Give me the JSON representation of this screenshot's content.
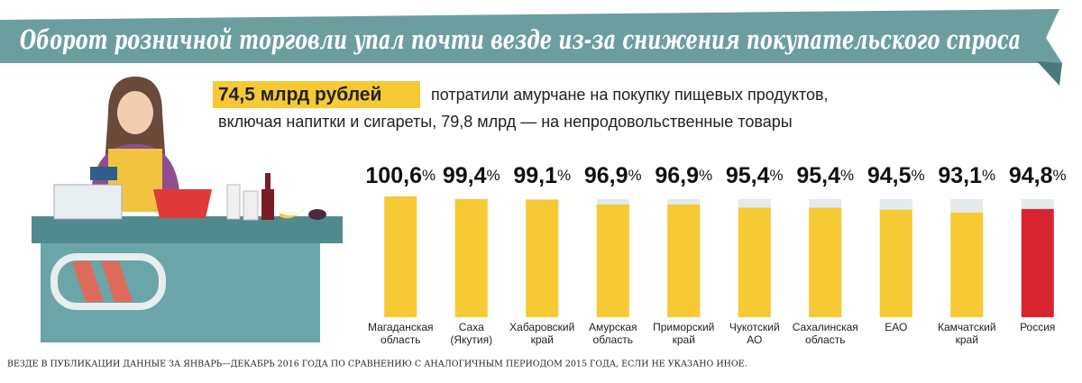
{
  "chart_data": {
    "type": "bar",
    "title": "Оборот розничной торговли упал почти везде из-за снижения покупательского спроса",
    "annotations": [
      "74,5 млрд рублей",
      "потратили амурчане на покупку пищевых продуктов,",
      "включая напитки и сигареты, 79,8 млрд — на непродовольственные товары"
    ],
    "note": "ВЕЗДЕ В ПУБЛИКАЦИИ ДАННЫЕ ЗА ЯНВАРЬ—ДЕКАБРЬ 2016 ГОДА ПО СРАВНЕНИЮ С АНАЛОГИЧНЫМ ПЕРИОДОМ 2015 ГОДА, ЕСЛИ НЕ УКАЗАНО ИНОЕ.",
    "categories": [
      [
        "Магаданская",
        "область"
      ],
      [
        "Саха",
        "(Якутия)"
      ],
      [
        "Хабаровский",
        "край"
      ],
      [
        "Амурская",
        "область"
      ],
      [
        "Приморский",
        "край"
      ],
      [
        "Чукотский",
        "АО"
      ],
      [
        "Сахалинская",
        "область"
      ],
      [
        "ЕАО"
      ],
      [
        "Камчатский",
        "край"
      ],
      [
        "Россия"
      ]
    ],
    "values": [
      100.6,
      99.4,
      99.1,
      96.9,
      96.9,
      95.4,
      95.4,
      94.5,
      93.1,
      94.8
    ],
    "value_labels": [
      "100,6",
      "99,4",
      "99,1",
      "96,9",
      "96,9",
      "95,4",
      "95,4",
      "94,5",
      "93,1",
      "94,8"
    ],
    "unit": "%",
    "colors": [
      "#f6c935",
      "#f6c935",
      "#f6c935",
      "#f6c935",
      "#f6c935",
      "#f6c935",
      "#f6c935",
      "#f6c935",
      "#f6c935",
      "#d9262e"
    ],
    "ylim": [
      45,
      101
    ]
  }
}
